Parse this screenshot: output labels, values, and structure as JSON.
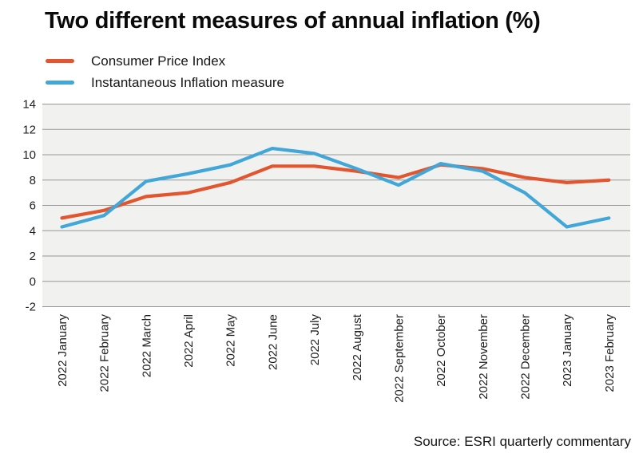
{
  "chart_data": {
    "type": "line",
    "title": "Two different measures of annual inflation (%)",
    "categories": [
      "2022 January",
      "2022 February",
      "2022 March",
      "2022 April",
      "2022 May",
      "2022 June",
      "2022 July",
      "2022 August",
      "2022 September",
      "2022 October",
      "2022 November",
      "2022 December",
      "2023 January",
      "2023 February"
    ],
    "series": [
      {
        "name": "Consumer Price Index",
        "color": "#e2552e",
        "values": [
          5.0,
          5.6,
          6.7,
          7.0,
          7.8,
          9.1,
          9.1,
          8.7,
          8.2,
          9.2,
          8.9,
          8.2,
          7.8,
          8.0
        ]
      },
      {
        "name": "Instantaneous Inflation measure",
        "color": "#41a6d8",
        "values": [
          4.3,
          5.2,
          7.9,
          8.5,
          9.2,
          10.5,
          10.1,
          8.9,
          7.6,
          9.3,
          8.7,
          7.0,
          4.3,
          5.0
        ]
      }
    ],
    "xlabel": "",
    "ylabel": "",
    "ylim": [
      -2,
      14
    ],
    "yticks": [
      14,
      12,
      10,
      8,
      6,
      4,
      2,
      0,
      -2
    ],
    "grid": "horizontal",
    "legend_position": "top-left",
    "plot_background": "#f1f1ef",
    "gridline_color": "#979797",
    "tick_label_color": "#1f1f1f"
  },
  "source": {
    "text": "Source: ESRI quarterly commentary"
  }
}
